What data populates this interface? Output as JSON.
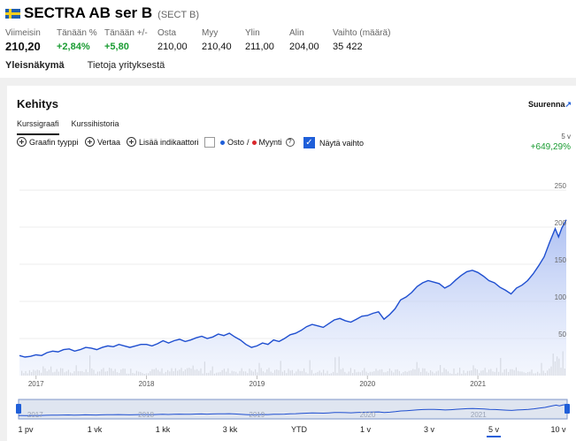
{
  "header": {
    "flag": "sweden-flag-icon",
    "name": "SECTRA AB ser B",
    "ticker": "(SECT B)"
  },
  "stats": [
    {
      "label": "Viimeisin",
      "value": "210,20"
    },
    {
      "label": "Tänään %",
      "value": "+2,84%"
    },
    {
      "label": "Tänään +/-",
      "value": "+5,80"
    },
    {
      "label": "Osta",
      "value": "210,00"
    },
    {
      "label": "Myy",
      "value": "210,40"
    },
    {
      "label": "Ylin",
      "value": "211,00"
    },
    {
      "label": "Alin",
      "value": "204,00"
    },
    {
      "label": "Vaihto (määrä)",
      "value": "35 422"
    }
  ],
  "tabs": [
    "Yleisnäkymä",
    "Tietoja yrityksestä"
  ],
  "card": {
    "title": "Kehitys",
    "enlarge": "Suurenna",
    "subtabs": [
      "Kurssigraafi",
      "Kurssihistoria"
    ]
  },
  "toolbar": {
    "chart_type": "Graafin tyyppi",
    "compare": "Vertaa",
    "add_indicators": "Lisää indikaattori",
    "buy": "Osto",
    "separator": "/",
    "sell": "Myynti",
    "help": "?",
    "show_volume": "Näytä vaihto"
  },
  "period": {
    "label": "5 v",
    "change": "+649,29%"
  },
  "range_buttons": [
    "1 pv",
    "1 vk",
    "1 kk",
    "3 kk",
    "YTD",
    "1 v",
    "3 v",
    "5 v",
    "10 v"
  ],
  "selected_range": "5 v",
  "colors": {
    "accent": "#1f5fd9",
    "positive": "#1a9c32",
    "line": "#1f4fd0",
    "buy_dot": "#1f5fd9",
    "sell_dot": "#d9262b"
  },
  "chart_data": {
    "type": "area",
    "x_ticks": [
      "2017",
      "2018",
      "2019",
      "2020",
      "2021"
    ],
    "y_ticks": [
      50,
      100,
      150,
      200,
      250
    ],
    "ylim": [
      0,
      262
    ],
    "xlim": [
      2016.85,
      2021.8
    ],
    "price": [
      [
        2016.85,
        27
      ],
      [
        2016.9,
        25
      ],
      [
        2016.95,
        26
      ],
      [
        2017.0,
        28
      ],
      [
        2017.05,
        27
      ],
      [
        2017.1,
        31
      ],
      [
        2017.15,
        33
      ],
      [
        2017.2,
        32
      ],
      [
        2017.25,
        35
      ],
      [
        2017.3,
        36
      ],
      [
        2017.35,
        33
      ],
      [
        2017.4,
        35
      ],
      [
        2017.45,
        38
      ],
      [
        2017.5,
        37
      ],
      [
        2017.55,
        35
      ],
      [
        2017.6,
        38
      ],
      [
        2017.65,
        40
      ],
      [
        2017.7,
        39
      ],
      [
        2017.75,
        42
      ],
      [
        2017.8,
        40
      ],
      [
        2017.85,
        38
      ],
      [
        2017.9,
        40
      ],
      [
        2017.95,
        42
      ],
      [
        2018.0,
        42
      ],
      [
        2018.05,
        40
      ],
      [
        2018.1,
        43
      ],
      [
        2018.15,
        47
      ],
      [
        2018.2,
        44
      ],
      [
        2018.25,
        47
      ],
      [
        2018.3,
        49
      ],
      [
        2018.35,
        46
      ],
      [
        2018.4,
        48
      ],
      [
        2018.45,
        51
      ],
      [
        2018.5,
        53
      ],
      [
        2018.55,
        50
      ],
      [
        2018.6,
        52
      ],
      [
        2018.65,
        56
      ],
      [
        2018.7,
        54
      ],
      [
        2018.75,
        57
      ],
      [
        2018.8,
        52
      ],
      [
        2018.85,
        48
      ],
      [
        2018.9,
        42
      ],
      [
        2018.95,
        38
      ],
      [
        2019.0,
        40
      ],
      [
        2019.05,
        44
      ],
      [
        2019.1,
        42
      ],
      [
        2019.15,
        48
      ],
      [
        2019.2,
        46
      ],
      [
        2019.25,
        50
      ],
      [
        2019.3,
        55
      ],
      [
        2019.35,
        57
      ],
      [
        2019.4,
        61
      ],
      [
        2019.45,
        66
      ],
      [
        2019.5,
        69
      ],
      [
        2019.55,
        67
      ],
      [
        2019.6,
        65
      ],
      [
        2019.65,
        70
      ],
      [
        2019.7,
        75
      ],
      [
        2019.75,
        77
      ],
      [
        2019.8,
        74
      ],
      [
        2019.85,
        72
      ],
      [
        2019.9,
        76
      ],
      [
        2019.95,
        80
      ],
      [
        2020.0,
        81
      ],
      [
        2020.05,
        84
      ],
      [
        2020.1,
        86
      ],
      [
        2020.15,
        76
      ],
      [
        2020.2,
        82
      ],
      [
        2020.25,
        90
      ],
      [
        2020.3,
        102
      ],
      [
        2020.35,
        106
      ],
      [
        2020.4,
        112
      ],
      [
        2020.45,
        120
      ],
      [
        2020.5,
        125
      ],
      [
        2020.55,
        128
      ],
      [
        2020.6,
        126
      ],
      [
        2020.65,
        124
      ],
      [
        2020.7,
        118
      ],
      [
        2020.75,
        122
      ],
      [
        2020.8,
        129
      ],
      [
        2020.85,
        135
      ],
      [
        2020.9,
        140
      ],
      [
        2020.95,
        142
      ],
      [
        2021.0,
        139
      ],
      [
        2021.05,
        134
      ],
      [
        2021.1,
        128
      ],
      [
        2021.15,
        125
      ],
      [
        2021.2,
        119
      ],
      [
        2021.25,
        115
      ],
      [
        2021.3,
        110
      ],
      [
        2021.35,
        118
      ],
      [
        2021.4,
        122
      ],
      [
        2021.45,
        128
      ],
      [
        2021.5,
        137
      ],
      [
        2021.55,
        148
      ],
      [
        2021.6,
        160
      ],
      [
        2021.65,
        180
      ],
      [
        2021.7,
        198
      ],
      [
        2021.73,
        187
      ],
      [
        2021.76,
        199
      ],
      [
        2021.8,
        210
      ]
    ]
  }
}
